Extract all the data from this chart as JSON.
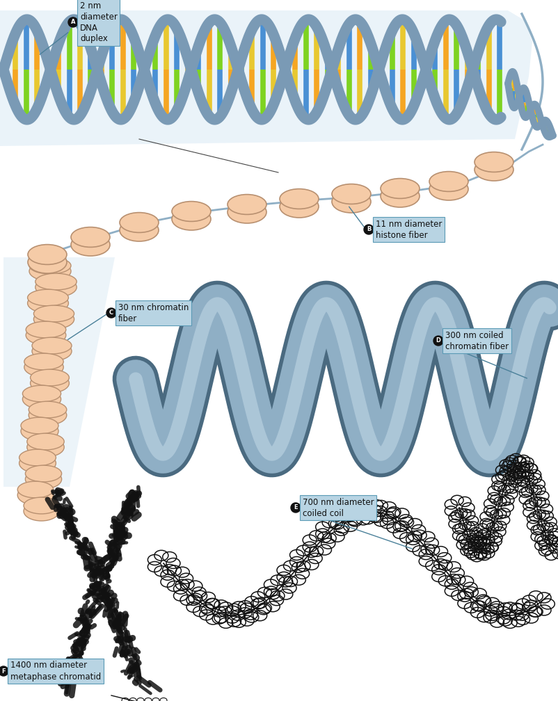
{
  "background_color": "#ffffff",
  "dna_backbone_color": "#7a9ab5",
  "dna_colors": [
    "#4a90d4",
    "#f5a623",
    "#7ed321",
    "#4a90d4"
  ],
  "nucleosome_fill": "#f5cba7",
  "nucleosome_edge": "#b89070",
  "fiber_color": "#8fafc5",
  "fiber_outline": "#5a7a90",
  "black_color": "#111111",
  "label_box_color": "#b8d4e3",
  "label_box_edge": "#5a9ab5",
  "label_circle_color": "#111111",
  "labels": {
    "A": "2 nm\ndiameter\nDNA\nduplex",
    "B": "11 nm diameter\nhistone fiber",
    "C": "30 nm chromatin\nfiber",
    "D": "300 nm coiled\nchromatin fiber",
    "E": "700 nm diameter\ncoiled coil",
    "F": "1400 nm diameter\nmetaphase chromatid"
  }
}
